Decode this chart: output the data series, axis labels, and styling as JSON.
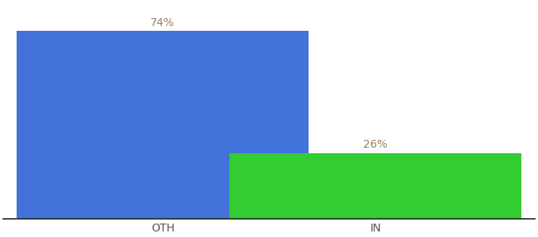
{
  "categories": [
    "OTH",
    "IN"
  ],
  "values": [
    74,
    26
  ],
  "bar_colors": [
    "#4472db",
    "#33cc33"
  ],
  "label_color": "#a08060",
  "label_fontsize": 10,
  "tick_label_fontsize": 10,
  "tick_label_color": "#555555",
  "background_color": "#ffffff",
  "ylim": [
    0,
    85
  ],
  "bar_width": 0.55,
  "x_positions": [
    0.3,
    0.7
  ],
  "xlim": [
    0.0,
    1.0
  ]
}
